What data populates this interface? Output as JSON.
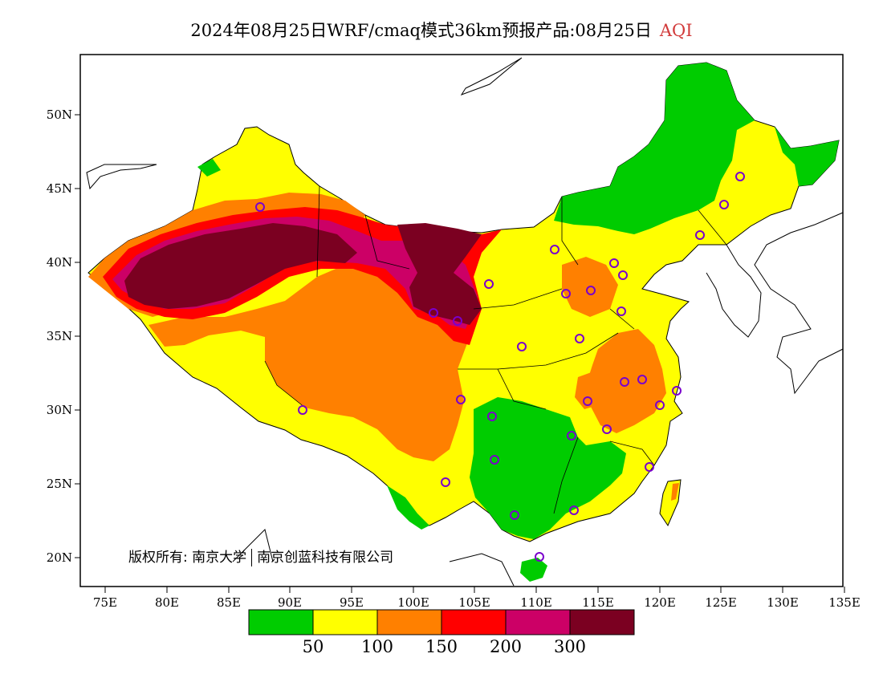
{
  "title": {
    "text": "2024年08月25日WRF/cmaq模式36km预报产品:08月25日",
    "metric": "AQI"
  },
  "copyright": {
    "label": "版权所有:",
    "org1": "南京大学",
    "org2": "南京创蓝科技有限公司"
  },
  "axes": {
    "lon_ticks": [
      "75E",
      "80E",
      "85E",
      "90E",
      "95E",
      "100E",
      "105E",
      "110E",
      "115E",
      "120E",
      "125E",
      "130E",
      "135E"
    ],
    "lat_ticks": [
      "20N",
      "25N",
      "30N",
      "35N",
      "40N",
      "45N",
      "50N"
    ]
  },
  "legend": {
    "colors": [
      "#00cc00",
      "#ffff00",
      "#ff8000",
      "#ff0000",
      "#cc0066",
      "#7b0021"
    ],
    "labels": [
      "50",
      "100",
      "150",
      "200",
      "300"
    ]
  },
  "colors": {
    "good": "#00cc00",
    "moderate": "#ffff00",
    "sensitive": "#ff8000",
    "unhealthy": "#ff0000",
    "very_unhealthy": "#cc0066",
    "hazardous": "#7b0021",
    "station_marker": "#7a00cc"
  }
}
